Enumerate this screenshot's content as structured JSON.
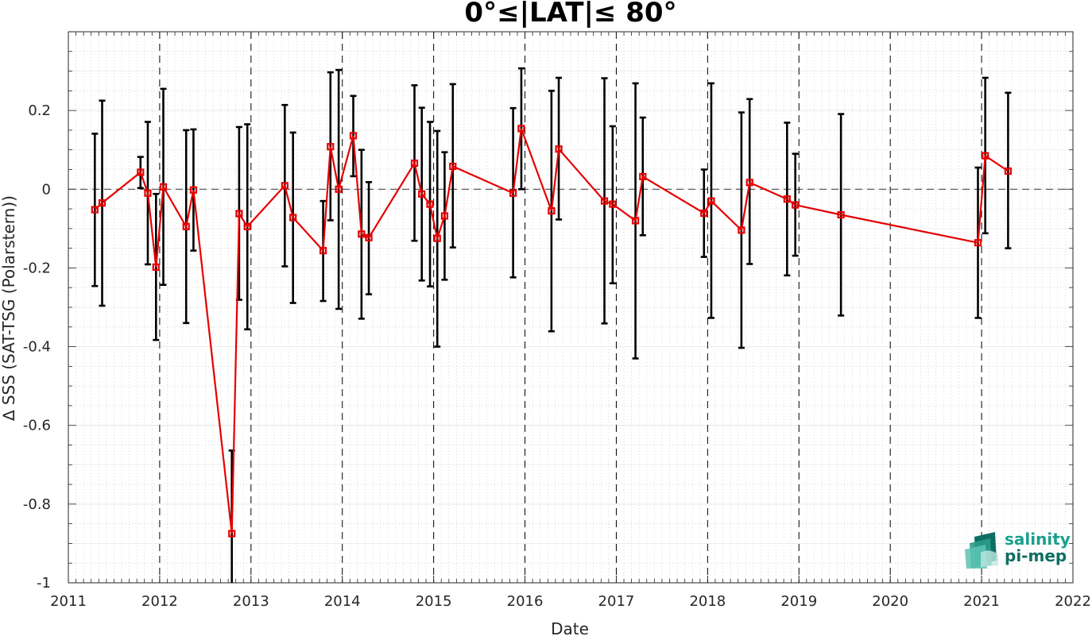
{
  "chart_data": {
    "type": "line",
    "title": "0°≤|LAT|≤ 80°",
    "xlabel": "Date",
    "ylabel": "∆ SSS (SAT-TSG (Polarstern))",
    "xlim": [
      2011,
      2022
    ],
    "ylim": [
      -1,
      0.4
    ],
    "x_ticks": [
      "2011",
      "2012",
      "2013",
      "2014",
      "2015",
      "2016",
      "2017",
      "2018",
      "2019",
      "2020",
      "2021",
      "2022"
    ],
    "y_ticks": [
      {
        "value": 0.2,
        "label": "0.2"
      },
      {
        "value": 0,
        "label": "0"
      },
      {
        "value": -0.2,
        "label": "-0.2"
      },
      {
        "value": -0.4,
        "label": "-0.4"
      },
      {
        "value": -0.6,
        "label": "-0.6"
      },
      {
        "value": -0.8,
        "label": "-0.8"
      },
      {
        "value": -1,
        "label": "-1"
      }
    ],
    "grid": true,
    "reference_line_y": 0,
    "year_boundaries": [
      2012,
      2013,
      2014,
      2015,
      2016,
      2017,
      2018,
      2019,
      2020,
      2021
    ],
    "series": [
      {
        "color": "#e60000",
        "marker": "square",
        "points": [
          {
            "x": 2011.29,
            "y": -0.052,
            "err_low": -0.246,
            "err_high": 0.141
          },
          {
            "x": 2011.37,
            "y": -0.035,
            "err_low": -0.296,
            "err_high": 0.225
          },
          {
            "x": 2011.79,
            "y": 0.043,
            "err_low": 0.003,
            "err_high": 0.082
          },
          {
            "x": 2011.87,
            "y": -0.01,
            "err_low": -0.191,
            "err_high": 0.171
          },
          {
            "x": 2011.96,
            "y": -0.198,
            "err_low": -0.383,
            "err_high": -0.012
          },
          {
            "x": 2012.04,
            "y": 0.006,
            "err_low": -0.243,
            "err_high": 0.255
          },
          {
            "x": 2012.29,
            "y": -0.095,
            "err_low": -0.34,
            "err_high": 0.15
          },
          {
            "x": 2012.37,
            "y": -0.002,
            "err_low": -0.156,
            "err_high": 0.152
          },
          {
            "x": 2012.79,
            "y": -0.875,
            "err_low": -1.0,
            "err_high": -0.664
          },
          {
            "x": 2012.87,
            "y": -0.062,
            "err_low": -0.281,
            "err_high": 0.158
          },
          {
            "x": 2012.96,
            "y": -0.095,
            "err_low": -0.356,
            "err_high": 0.165
          },
          {
            "x": 2013.37,
            "y": 0.009,
            "err_low": -0.196,
            "err_high": 0.214
          },
          {
            "x": 2013.46,
            "y": -0.072,
            "err_low": -0.289,
            "err_high": 0.144
          },
          {
            "x": 2013.79,
            "y": -0.156,
            "err_low": -0.284,
            "err_high": -0.03
          },
          {
            "x": 2013.87,
            "y": 0.108,
            "err_low": -0.079,
            "err_high": 0.297
          },
          {
            "x": 2013.96,
            "y": 0.0,
            "err_low": -0.304,
            "err_high": 0.303
          },
          {
            "x": 2014.12,
            "y": 0.136,
            "err_low": 0.033,
            "err_high": 0.237
          },
          {
            "x": 2014.21,
            "y": -0.114,
            "err_low": -0.329,
            "err_high": 0.1
          },
          {
            "x": 2014.29,
            "y": -0.123,
            "err_low": -0.267,
            "err_high": 0.018
          },
          {
            "x": 2014.79,
            "y": 0.066,
            "err_low": -0.131,
            "err_high": 0.264
          },
          {
            "x": 2014.87,
            "y": -0.012,
            "err_low": -0.232,
            "err_high": 0.207
          },
          {
            "x": 2014.96,
            "y": -0.038,
            "err_low": -0.247,
            "err_high": 0.171
          },
          {
            "x": 2015.04,
            "y": -0.125,
            "err_low": -0.4,
            "err_high": 0.148
          },
          {
            "x": 2015.12,
            "y": -0.068,
            "err_low": -0.23,
            "err_high": 0.094
          },
          {
            "x": 2015.21,
            "y": 0.058,
            "err_low": -0.148,
            "err_high": 0.267
          },
          {
            "x": 2015.87,
            "y": -0.01,
            "err_low": -0.224,
            "err_high": 0.206
          },
          {
            "x": 2015.96,
            "y": 0.154,
            "err_low": 0.0,
            "err_high": 0.307
          },
          {
            "x": 2016.29,
            "y": -0.055,
            "err_low": -0.361,
            "err_high": 0.25
          },
          {
            "x": 2016.37,
            "y": 0.102,
            "err_low": -0.077,
            "err_high": 0.283
          },
          {
            "x": 2016.87,
            "y": -0.03,
            "err_low": -0.341,
            "err_high": 0.282
          },
          {
            "x": 2016.96,
            "y": -0.038,
            "err_low": -0.239,
            "err_high": 0.16
          },
          {
            "x": 2017.21,
            "y": -0.08,
            "err_low": -0.43,
            "err_high": 0.269
          },
          {
            "x": 2017.29,
            "y": 0.032,
            "err_low": -0.117,
            "err_high": 0.182
          },
          {
            "x": 2017.96,
            "y": -0.061,
            "err_low": -0.172,
            "err_high": 0.05
          },
          {
            "x": 2018.04,
            "y": -0.03,
            "err_low": -0.327,
            "err_high": 0.269
          },
          {
            "x": 2018.37,
            "y": -0.104,
            "err_low": -0.403,
            "err_high": 0.195
          },
          {
            "x": 2018.46,
            "y": 0.017,
            "err_low": -0.19,
            "err_high": 0.229
          },
          {
            "x": 2018.87,
            "y": -0.025,
            "err_low": -0.219,
            "err_high": 0.169
          },
          {
            "x": 2018.96,
            "y": -0.04,
            "err_low": -0.169,
            "err_high": 0.09
          },
          {
            "x": 2019.46,
            "y": -0.065,
            "err_low": -0.321,
            "err_high": 0.191
          },
          {
            "x": 2020.96,
            "y": -0.136,
            "err_low": -0.327,
            "err_high": 0.055
          },
          {
            "x": 2021.04,
            "y": 0.085,
            "err_low": -0.112,
            "err_high": 0.283
          },
          {
            "x": 2021.29,
            "y": 0.046,
            "err_low": -0.15,
            "err_high": 0.245
          }
        ]
      }
    ]
  },
  "logo": {
    "line1": "salinity",
    "line2": "pi-mep"
  },
  "colors": {
    "series": "#e60000",
    "errorbar": "#000000",
    "logo_text": "#1a9f8c",
    "logo_dark": "#0f6e62",
    "logo_light": "#5cc4b3"
  }
}
